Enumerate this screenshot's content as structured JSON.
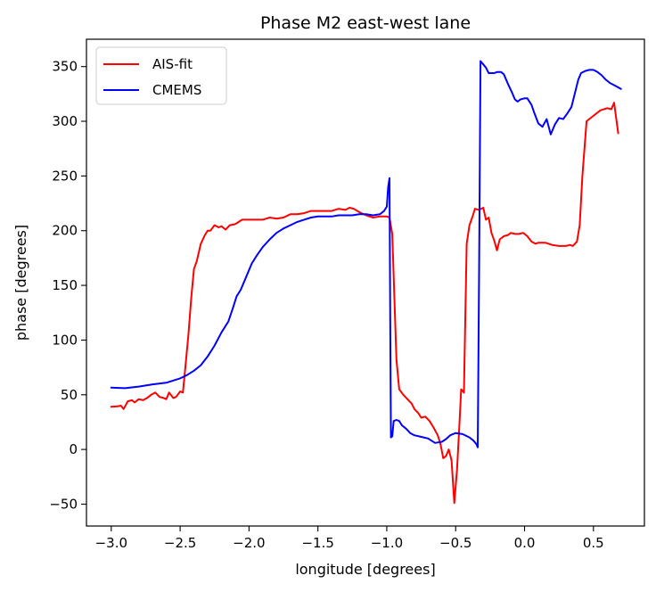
{
  "chart_data": {
    "type": "line",
    "title": "Phase M2 east-west lane",
    "xlabel": "longitude [degrees]",
    "ylabel": "phase [degrees]",
    "xlim": [
      -3.18,
      0.87
    ],
    "ylim": [
      -70,
      375
    ],
    "xticks": [
      -3.0,
      -2.5,
      -2.0,
      -1.5,
      -1.0,
      -0.5,
      0.0,
      0.5
    ],
    "xtick_labels": [
      "−3.0",
      "−2.5",
      "−2.0",
      "−1.5",
      "−1.0",
      "−0.5",
      "0.0",
      "0.5"
    ],
    "yticks": [
      -50,
      0,
      50,
      100,
      150,
      200,
      250,
      300,
      350
    ],
    "ytick_labels": [
      "−50",
      "0",
      "50",
      "100",
      "150",
      "200",
      "250",
      "300",
      "350"
    ],
    "grid": false,
    "legend_position": "top-left",
    "series": [
      {
        "name": "AIS-fit",
        "color": "#ff0000",
        "points": [
          [
            -3.0,
            39
          ],
          [
            -2.95,
            39.5
          ],
          [
            -2.93,
            40
          ],
          [
            -2.91,
            37
          ],
          [
            -2.88,
            44
          ],
          [
            -2.85,
            45
          ],
          [
            -2.83,
            43
          ],
          [
            -2.8,
            46
          ],
          [
            -2.77,
            45
          ],
          [
            -2.74,
            47
          ],
          [
            -2.71,
            50
          ],
          [
            -2.68,
            52
          ],
          [
            -2.65,
            48
          ],
          [
            -2.62,
            47
          ],
          [
            -2.6,
            46
          ],
          [
            -2.58,
            52
          ],
          [
            -2.55,
            47
          ],
          [
            -2.53,
            48
          ],
          [
            -2.5,
            53
          ],
          [
            -2.48,
            52
          ],
          [
            -2.46,
            78
          ],
          [
            -2.44,
            105
          ],
          [
            -2.42,
            138
          ],
          [
            -2.4,
            165
          ],
          [
            -2.38,
            172
          ],
          [
            -2.35,
            188
          ],
          [
            -2.32,
            196
          ],
          [
            -2.3,
            200
          ],
          [
            -2.28,
            200
          ],
          [
            -2.25,
            205
          ],
          [
            -2.22,
            203
          ],
          [
            -2.2,
            204
          ],
          [
            -2.17,
            201
          ],
          [
            -2.14,
            205
          ],
          [
            -2.1,
            206
          ],
          [
            -2.05,
            210
          ],
          [
            -2.0,
            210
          ],
          [
            -1.95,
            210
          ],
          [
            -1.9,
            210
          ],
          [
            -1.85,
            212
          ],
          [
            -1.8,
            211
          ],
          [
            -1.75,
            212
          ],
          [
            -1.7,
            215
          ],
          [
            -1.65,
            215
          ],
          [
            -1.6,
            216
          ],
          [
            -1.55,
            218
          ],
          [
            -1.5,
            218
          ],
          [
            -1.45,
            218
          ],
          [
            -1.4,
            218
          ],
          [
            -1.35,
            220
          ],
          [
            -1.3,
            219
          ],
          [
            -1.27,
            221
          ],
          [
            -1.24,
            220
          ],
          [
            -1.2,
            217
          ],
          [
            -1.15,
            214
          ],
          [
            -1.1,
            212
          ],
          [
            -1.05,
            213
          ],
          [
            -1.0,
            213
          ],
          [
            -0.98,
            212
          ],
          [
            -0.96,
            197
          ],
          [
            -0.93,
            82
          ],
          [
            -0.91,
            55
          ],
          [
            -0.88,
            50
          ],
          [
            -0.85,
            46
          ],
          [
            -0.82,
            42
          ],
          [
            -0.8,
            37
          ],
          [
            -0.77,
            33
          ],
          [
            -0.75,
            29
          ],
          [
            -0.72,
            30
          ],
          [
            -0.69,
            26
          ],
          [
            -0.66,
            20
          ],
          [
            -0.63,
            13
          ],
          [
            -0.61,
            5
          ],
          [
            -0.59,
            -8
          ],
          [
            -0.57,
            -6
          ],
          [
            -0.55,
            0
          ],
          [
            -0.53,
            -10
          ],
          [
            -0.51,
            -49
          ],
          [
            -0.49,
            -18
          ],
          [
            -0.47,
            30
          ],
          [
            -0.46,
            55
          ],
          [
            -0.44,
            52
          ],
          [
            -0.42,
            188
          ],
          [
            -0.4,
            205
          ],
          [
            -0.38,
            212
          ],
          [
            -0.36,
            220
          ],
          [
            -0.33,
            219
          ],
          [
            -0.3,
            221
          ],
          [
            -0.28,
            210
          ],
          [
            -0.26,
            212
          ],
          [
            -0.24,
            198
          ],
          [
            -0.22,
            191
          ],
          [
            -0.2,
            182
          ],
          [
            -0.18,
            192
          ],
          [
            -0.15,
            195
          ],
          [
            -0.12,
            196
          ],
          [
            -0.1,
            198
          ],
          [
            -0.07,
            197
          ],
          [
            -0.04,
            197
          ],
          [
            -0.01,
            198
          ],
          [
            0.02,
            195
          ],
          [
            0.05,
            190
          ],
          [
            0.08,
            188
          ],
          [
            0.1,
            189
          ],
          [
            0.15,
            189
          ],
          [
            0.2,
            187
          ],
          [
            0.25,
            186
          ],
          [
            0.3,
            186
          ],
          [
            0.33,
            187
          ],
          [
            0.35,
            186
          ],
          [
            0.38,
            190
          ],
          [
            0.4,
            205
          ],
          [
            0.42,
            250
          ],
          [
            0.45,
            300
          ],
          [
            0.5,
            305
          ],
          [
            0.55,
            310
          ],
          [
            0.6,
            312
          ],
          [
            0.63,
            311
          ],
          [
            0.65,
            317
          ],
          [
            0.68,
            289
          ]
        ]
      },
      {
        "name": "CMEMS",
        "color": "#0000ff",
        "points": [
          [
            -3.0,
            56.5
          ],
          [
            -2.9,
            56
          ],
          [
            -2.8,
            57.5
          ],
          [
            -2.7,
            59.5
          ],
          [
            -2.6,
            61
          ],
          [
            -2.55,
            63
          ],
          [
            -2.5,
            65
          ],
          [
            -2.45,
            68
          ],
          [
            -2.4,
            72
          ],
          [
            -2.35,
            77
          ],
          [
            -2.3,
            85
          ],
          [
            -2.25,
            95
          ],
          [
            -2.2,
            107
          ],
          [
            -2.15,
            117
          ],
          [
            -2.12,
            128
          ],
          [
            -2.09,
            140
          ],
          [
            -2.06,
            146
          ],
          [
            -2.02,
            158
          ],
          [
            -1.98,
            170
          ],
          [
            -1.94,
            178
          ],
          [
            -1.9,
            185
          ],
          [
            -1.85,
            192
          ],
          [
            -1.8,
            198
          ],
          [
            -1.75,
            202
          ],
          [
            -1.7,
            205
          ],
          [
            -1.65,
            208
          ],
          [
            -1.6,
            210
          ],
          [
            -1.55,
            212
          ],
          [
            -1.5,
            213
          ],
          [
            -1.45,
            213
          ],
          [
            -1.4,
            213
          ],
          [
            -1.35,
            214
          ],
          [
            -1.3,
            214
          ],
          [
            -1.25,
            214
          ],
          [
            -1.2,
            215
          ],
          [
            -1.15,
            215
          ],
          [
            -1.1,
            214
          ],
          [
            -1.05,
            215
          ],
          [
            -1.02,
            218
          ],
          [
            -1.0,
            222
          ],
          [
            -0.99,
            240
          ],
          [
            -0.98,
            248
          ],
          [
            -0.975,
            120
          ],
          [
            -0.97,
            11
          ],
          [
            -0.96,
            12
          ],
          [
            -0.95,
            26
          ],
          [
            -0.93,
            27
          ],
          [
            -0.91,
            26
          ],
          [
            -0.89,
            22
          ],
          [
            -0.86,
            19
          ],
          [
            -0.83,
            15
          ],
          [
            -0.8,
            13
          ],
          [
            -0.75,
            11.5
          ],
          [
            -0.7,
            10
          ],
          [
            -0.65,
            6
          ],
          [
            -0.6,
            7
          ],
          [
            -0.57,
            9.5
          ],
          [
            -0.54,
            13
          ],
          [
            -0.5,
            15
          ],
          [
            -0.45,
            14
          ],
          [
            -0.4,
            11
          ],
          [
            -0.37,
            8
          ],
          [
            -0.35,
            5
          ],
          [
            -0.34,
            2
          ],
          [
            -0.33,
            160
          ],
          [
            -0.32,
            355
          ],
          [
            -0.3,
            352
          ],
          [
            -0.28,
            349
          ],
          [
            -0.26,
            344
          ],
          [
            -0.22,
            344
          ],
          [
            -0.2,
            345
          ],
          [
            -0.17,
            345
          ],
          [
            -0.15,
            343
          ],
          [
            -0.12,
            334
          ],
          [
            -0.09,
            326
          ],
          [
            -0.07,
            320
          ],
          [
            -0.05,
            318
          ],
          [
            -0.03,
            320
          ],
          [
            0.0,
            321
          ],
          [
            0.02,
            321
          ],
          [
            0.05,
            315
          ],
          [
            0.07,
            308
          ],
          [
            0.1,
            298
          ],
          [
            0.13,
            295
          ],
          [
            0.16,
            302
          ],
          [
            0.19,
            288
          ],
          [
            0.22,
            297
          ],
          [
            0.25,
            303
          ],
          [
            0.28,
            302
          ],
          [
            0.31,
            307
          ],
          [
            0.34,
            313
          ],
          [
            0.37,
            328
          ],
          [
            0.39,
            338
          ],
          [
            0.41,
            344
          ],
          [
            0.44,
            346
          ],
          [
            0.47,
            347
          ],
          [
            0.5,
            347
          ],
          [
            0.53,
            345
          ],
          [
            0.56,
            342
          ],
          [
            0.59,
            338
          ],
          [
            0.62,
            335
          ],
          [
            0.65,
            333
          ],
          [
            0.68,
            331
          ],
          [
            0.7,
            329.5
          ]
        ]
      }
    ]
  }
}
